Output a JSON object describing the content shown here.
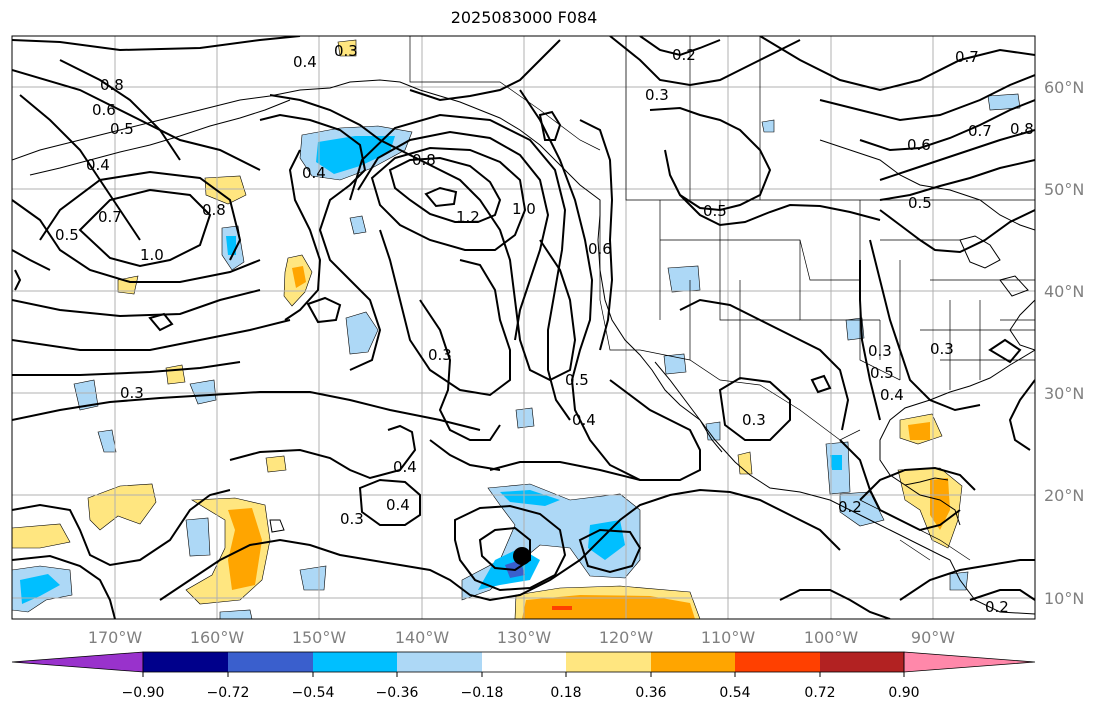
{
  "title": "2025083000 F084",
  "map": {
    "lon_ticks": [
      "170°W",
      "160°W",
      "150°W",
      "140°W",
      "130°W",
      "120°W",
      "110°W",
      "100°W",
      "90°W"
    ],
    "lat_ticks": [
      "60°N",
      "50°N",
      "40°N",
      "30°N",
      "20°N",
      "10°N"
    ],
    "contour_labels": [
      "0.3",
      "0.4",
      "0.2",
      "0.3",
      "0.7",
      "0.8",
      "0.6",
      "0.5",
      "0.4",
      "0.5",
      "0.7",
      "1.0",
      "0.8",
      "0.4",
      "0.8",
      "1.2",
      "1.0",
      "0.6",
      "0.5",
      "0.6",
      "0.7",
      "0.8",
      "0.5",
      "0.3",
      "0.5",
      "0.4",
      "0.3",
      "0.4",
      "0.3",
      "0.3",
      "0.4",
      "0.3",
      "0.5",
      "0.4",
      "0.3",
      "0.2",
      "0.2"
    ],
    "colors": {
      "coast": "#000000",
      "grid": "#b0b0b0",
      "contour": "#000000"
    }
  },
  "colorbar": {
    "labels": [
      "−0.90",
      "−0.72",
      "−0.54",
      "−0.36",
      "−0.18",
      "0.18",
      "0.36",
      "0.54",
      "0.72",
      "0.90"
    ],
    "colors": [
      "#9932cc",
      "#00008b",
      "#3a5fcd",
      "#00bfff",
      "#add8f6",
      "#ffffff",
      "#ffe680",
      "#ffa500",
      "#ff4000",
      "#b22222",
      "#ff88aa"
    ]
  }
}
